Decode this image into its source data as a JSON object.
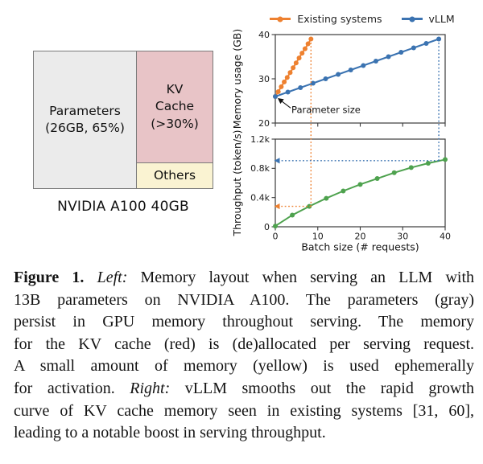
{
  "left_diagram": {
    "parameters_lines": [
      "Parameters",
      "(26GB, 65%)"
    ],
    "kv_cache_lines": [
      "KV",
      "Cache",
      "(>30%)"
    ],
    "others_label": "Others",
    "caption": "NVIDIA A100 40GB",
    "colors": {
      "parameters_fill": "#ebebeb",
      "kv_cache_fill": "#e8c4c7",
      "others_fill": "#faf3d2",
      "border": "#7a7a7a"
    }
  },
  "legend": {
    "items": [
      {
        "label": "Existing systems",
        "color": "#ee8130"
      },
      {
        "label": "vLLM",
        "color": "#3b73b1"
      }
    ]
  },
  "chart_data": [
    {
      "id": "memory-usage",
      "type": "line",
      "ylabel": "Memory usage (GB)",
      "xlim": [
        0,
        40
      ],
      "ylim": [
        20,
        40
      ],
      "yticks": [
        {
          "v": 20,
          "label": "20"
        },
        {
          "v": 30,
          "label": "30"
        },
        {
          "v": 40,
          "label": "40"
        }
      ],
      "xticks": [
        {
          "v": 0,
          "label": "0"
        },
        {
          "v": 10,
          "label": "10"
        },
        {
          "v": 20,
          "label": "20"
        },
        {
          "v": 30,
          "label": "30"
        },
        {
          "v": 40,
          "label": "40"
        }
      ],
      "show_xtick_labels": false,
      "grid": false,
      "series": [
        {
          "name": "Existing systems",
          "color": "#ee8130",
          "x": [
            0,
            0.7,
            1.4,
            2.1,
            2.8,
            3.5,
            4.2,
            4.9,
            5.6,
            6.3,
            7.0,
            7.7,
            8.4
          ],
          "y": [
            26,
            27.1,
            28.2,
            29.3,
            30.3,
            31.4,
            32.5,
            33.6,
            34.7,
            35.8,
            36.8,
            37.9,
            39
          ]
        },
        {
          "name": "vLLM",
          "color": "#3b73b1",
          "x": [
            0,
            2.96,
            5.92,
            8.88,
            11.85,
            14.81,
            17.77,
            20.73,
            23.69,
            26.65,
            29.62,
            32.58,
            35.54,
            38.5
          ],
          "y": [
            26,
            27,
            28,
            29,
            30,
            31,
            32,
            33,
            34,
            35,
            36,
            37,
            38,
            39
          ]
        }
      ],
      "annotation": {
        "text": "Parameter size",
        "target_xy": [
          0,
          26
        ],
        "text_xy": [
          3.8,
          22.3
        ]
      }
    },
    {
      "id": "throughput",
      "type": "line",
      "ylabel": "Throughput (token/s)",
      "xlabel": "Batch size (# requests)",
      "xlim": [
        0,
        40
      ],
      "ylim": [
        0,
        1.2
      ],
      "yticks": [
        {
          "v": 0,
          "label": "0"
        },
        {
          "v": 0.4,
          "label": "0.4k"
        },
        {
          "v": 0.8,
          "label": "0.8k"
        },
        {
          "v": 1.2,
          "label": "1.2k"
        }
      ],
      "xticks": [
        {
          "v": 0,
          "label": "0"
        },
        {
          "v": 10,
          "label": "10"
        },
        {
          "v": 20,
          "label": "20"
        },
        {
          "v": 30,
          "label": "30"
        },
        {
          "v": 40,
          "label": "40"
        }
      ],
      "show_xtick_labels": true,
      "grid": false,
      "series": [
        {
          "name": "vLLM throughput",
          "color": "#4ea24e",
          "x": [
            0,
            4,
            8,
            12,
            16,
            20,
            24,
            28,
            32,
            36,
            40
          ],
          "y": [
            0.01,
            0.16,
            0.28,
            0.39,
            0.49,
            0.58,
            0.66,
            0.74,
            0.81,
            0.87,
            0.92
          ]
        }
      ]
    }
  ],
  "guides": [
    {
      "x": 8.4,
      "memory_y": 39,
      "throughput_y": 0.28,
      "color": "#ee8130"
    },
    {
      "x": 38.5,
      "memory_y": 39,
      "throughput_y": 0.905,
      "color": "#3b73b1"
    }
  ],
  "caption": {
    "lines": [
      [
        {
          "t": "Figure 1.",
          "b": 1
        },
        {
          "t": " "
        },
        {
          "t": "Left:",
          "i": 1
        },
        {
          "t": " Memory layout when serving an LLM with"
        }
      ],
      [
        {
          "t": "13B parameters on NVIDIA A100. The parameters (gray)"
        }
      ],
      [
        {
          "t": "persist in GPU memory throughout serving. The memory"
        }
      ],
      [
        {
          "t": "for the KV cache (red) is (de)allocated per serving request."
        }
      ],
      [
        {
          "t": "A small amount of memory (yellow) is used ephemerally"
        }
      ],
      [
        {
          "t": "for activation. "
        },
        {
          "t": "Right:",
          "i": 1
        },
        {
          "t": " vLLM smooths out the rapid growth"
        }
      ],
      [
        {
          "t": "curve of KV cache memory seen in existing systems [31, 60],"
        }
      ],
      [
        {
          "t": "leading to a notable boost in serving throughput."
        }
      ]
    ]
  }
}
